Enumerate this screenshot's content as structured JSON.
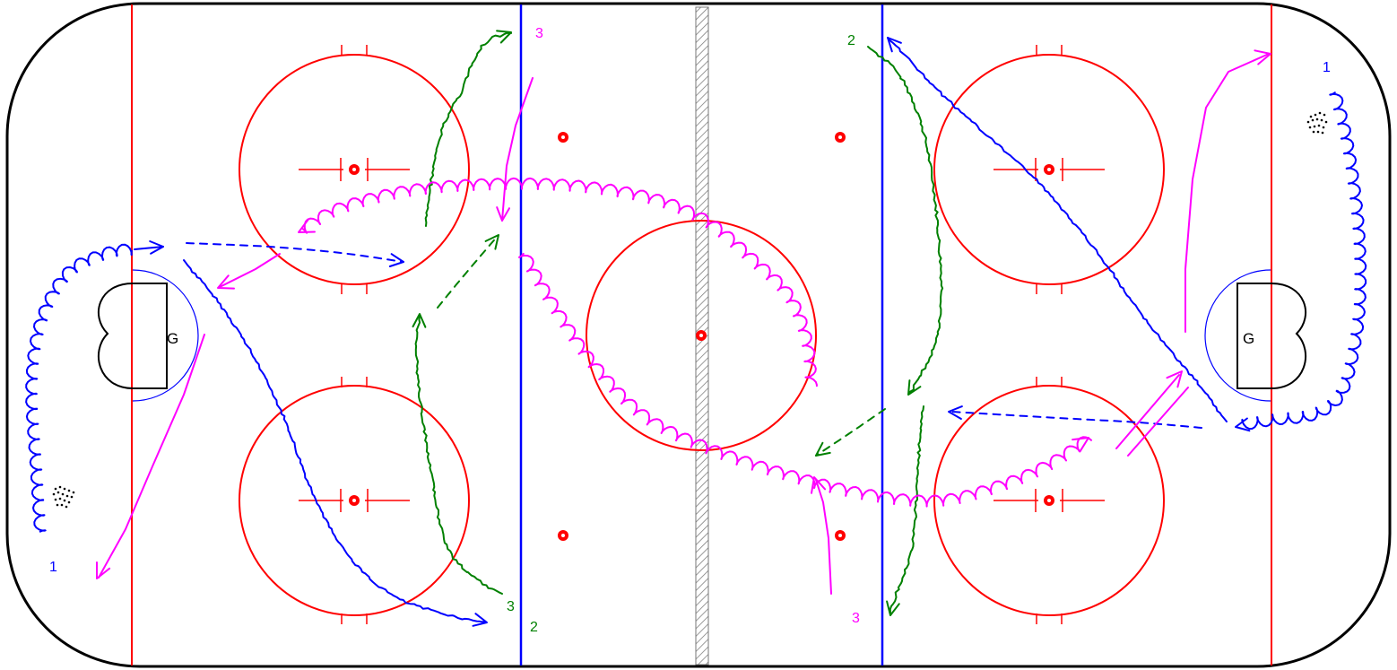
{
  "rink": {
    "goalie_left": "G",
    "goalie_right": "G"
  },
  "colors": {
    "board": "#000000",
    "red_line": "#ff0000",
    "blue_line": "#0000ff",
    "crease": "#0000ff",
    "player_1": "#0000ff",
    "player_2": "#008000",
    "player_3": "#ff00ff"
  },
  "icons": [
    "puck-pile-icon",
    "goal-net-icon",
    "faceoff-dot-icon"
  ],
  "labels": {
    "left_player_1": "1",
    "right_player_1": "1",
    "top_player_3": "3",
    "bottom_player_3": "3",
    "top_player_2": "2",
    "bottom_player_2": "2",
    "bottom_green_3": "3"
  }
}
